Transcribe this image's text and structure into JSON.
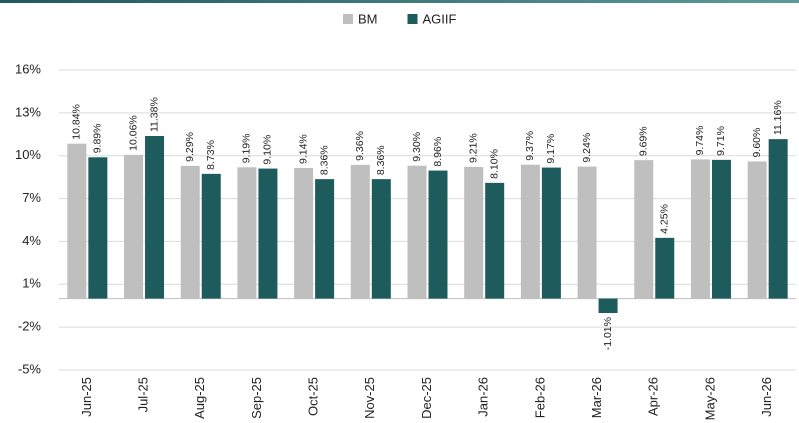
{
  "chart_data": {
    "type": "bar",
    "categories": [
      "Jun-25",
      "Jul-25",
      "Aug-25",
      "Sep-25",
      "Oct-25",
      "Nov-25",
      "Dec-25",
      "Jan-26",
      "Feb-26",
      "Mar-26",
      "Apr-26",
      "May-26",
      "Jun-26"
    ],
    "series": [
      {
        "name": "BM",
        "color": "#bfbfbf",
        "values": [
          10.84,
          10.06,
          9.29,
          9.19,
          9.14,
          9.36,
          9.3,
          9.21,
          9.37,
          9.24,
          9.69,
          9.74,
          9.6
        ],
        "value_labels": [
          "10.84%",
          "10.06%",
          "9.29%",
          "9.19%",
          "9.14%",
          "9.36%",
          "9.30%",
          "9.21%",
          "9.37%",
          "9.24%",
          "9.69%",
          "9.74%",
          "9.60%"
        ]
      },
      {
        "name": "AGIIF",
        "color": "#1d5b5c",
        "values": [
          9.89,
          11.38,
          8.73,
          9.1,
          8.36,
          8.36,
          8.96,
          8.1,
          9.17,
          -1.01,
          4.25,
          9.71,
          11.16
        ],
        "value_labels": [
          "9.89%",
          "11.38%",
          "8.73%",
          "9.10%",
          "8.36%",
          "8.36%",
          "8.96%",
          "8.10%",
          "9.17%",
          "-1.01%",
          "4.25%",
          "9.71%",
          "11.16%"
        ]
      }
    ],
    "ylim": [
      -5,
      16
    ],
    "yticks": [
      {
        "value": 16,
        "label": "16%"
      },
      {
        "value": 13,
        "label": "13%"
      },
      {
        "value": 10,
        "label": "10%"
      },
      {
        "value": 7,
        "label": "7%"
      },
      {
        "value": 4,
        "label": "4%"
      },
      {
        "value": 1,
        "label": "1%"
      },
      {
        "value": -2,
        "label": "-2%"
      },
      {
        "value": -5,
        "label": "-5%"
      }
    ],
    "grid": true,
    "legend": "top"
  }
}
